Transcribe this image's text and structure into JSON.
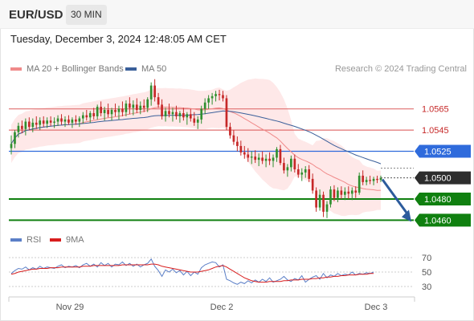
{
  "header": {
    "symbol": "EUR/USD",
    "timeframe": "30 MIN",
    "timestamp": "Tuesday, December 3, 2024 12:48:05 AM CET"
  },
  "legend_top": {
    "items": [
      {
        "label": "MA 20 + Bollinger Bands",
        "color": "#f08a8a"
      },
      {
        "label": "MA 50",
        "color": "#3a5f9a"
      }
    ],
    "credit": "Research © 2024 Trading Central"
  },
  "legend_bottom": {
    "items": [
      {
        "label": "RSI",
        "color": "#5b7fc7"
      },
      {
        "label": "9MA",
        "color": "#d81d1d"
      }
    ]
  },
  "colors": {
    "up": "#2f8f2f",
    "down": "#c62828",
    "resistance": "#e07070",
    "pivot": "#2f6bdc",
    "support": "#108010",
    "last": "#2d2d2d",
    "arrow": "#2c5b9c",
    "bands": "#fde0e0"
  },
  "chart_data": [
    {
      "type": "line",
      "title": "EUR/USD 30 MIN",
      "x_ticks": [
        "Nov 29",
        "Dec 2",
        "Dec 3"
      ],
      "y_range": [
        1.0452,
        1.0592
      ],
      "current_price": "1.0500",
      "levels": [
        {
          "value": 1.0565,
          "label": "1.0565",
          "kind": "resistance"
        },
        {
          "value": 1.0545,
          "label": "1.0545",
          "kind": "resistance"
        },
        {
          "value": 1.0525,
          "label": "1.0525",
          "kind": "pivot"
        },
        {
          "value": 1.048,
          "label": "1.0480",
          "kind": "support"
        },
        {
          "value": 1.046,
          "label": "1.0460",
          "kind": "support"
        }
      ],
      "forecast": {
        "direction": "down",
        "from": 1.05,
        "to": 1.046
      },
      "candles": [
        [
          1.0528,
          1.054,
          1.0522,
          1.0532
        ],
        [
          1.0532,
          1.0545,
          1.0528,
          1.0543
        ],
        [
          1.0543,
          1.0552,
          1.0538,
          1.0549
        ],
        [
          1.0549,
          1.0554,
          1.0542,
          1.0546
        ],
        [
          1.0546,
          1.0556,
          1.054,
          1.0553
        ],
        [
          1.0553,
          1.0557,
          1.0545,
          1.0548
        ],
        [
          1.0548,
          1.0556,
          1.0543,
          1.0552
        ],
        [
          1.0552,
          1.0558,
          1.0546,
          1.055
        ],
        [
          1.055,
          1.0557,
          1.0545,
          1.0554
        ],
        [
          1.0554,
          1.0558,
          1.0548,
          1.0551
        ],
        [
          1.0551,
          1.0557,
          1.0547,
          1.0554
        ],
        [
          1.0554,
          1.0558,
          1.0549,
          1.0552
        ],
        [
          1.0552,
          1.0557,
          1.0547,
          1.0553
        ],
        [
          1.0553,
          1.0559,
          1.0549,
          1.0556
        ],
        [
          1.0556,
          1.056,
          1.055,
          1.0553
        ],
        [
          1.0553,
          1.0558,
          1.0548,
          1.0555
        ],
        [
          1.0555,
          1.0559,
          1.055,
          1.0552
        ],
        [
          1.0552,
          1.0557,
          1.0547,
          1.0555
        ],
        [
          1.0555,
          1.0559,
          1.055,
          1.0553
        ],
        [
          1.0553,
          1.0558,
          1.0548,
          1.0556
        ],
        [
          1.0556,
          1.0562,
          1.0551,
          1.0559
        ],
        [
          1.0559,
          1.0564,
          1.0554,
          1.0557
        ],
        [
          1.0557,
          1.0563,
          1.0552,
          1.0561
        ],
        [
          1.0561,
          1.0566,
          1.0555,
          1.0558
        ],
        [
          1.0558,
          1.0569,
          1.0555,
          1.0567
        ],
        [
          1.0567,
          1.0572,
          1.0558,
          1.0561
        ],
        [
          1.0561,
          1.0567,
          1.0554,
          1.0564
        ],
        [
          1.0564,
          1.057,
          1.0557,
          1.056
        ],
        [
          1.056,
          1.0566,
          1.0554,
          1.0564
        ],
        [
          1.0564,
          1.057,
          1.0558,
          1.0562
        ],
        [
          1.0562,
          1.0568,
          1.0555,
          1.0565
        ],
        [
          1.0565,
          1.0572,
          1.0558,
          1.0562
        ],
        [
          1.0562,
          1.0573,
          1.0558,
          1.057
        ],
        [
          1.057,
          1.0576,
          1.056,
          1.0566
        ],
        [
          1.0566,
          1.0573,
          1.0559,
          1.0569
        ],
        [
          1.0569,
          1.0575,
          1.0561,
          1.0564
        ],
        [
          1.0564,
          1.0572,
          1.056,
          1.0568
        ],
        [
          1.0568,
          1.0574,
          1.0562,
          1.0566
        ],
        [
          1.0566,
          1.0576,
          1.0562,
          1.0574
        ],
        [
          1.0574,
          1.059,
          1.0568,
          1.0587
        ],
        [
          1.0587,
          1.0593,
          1.0572,
          1.0576
        ],
        [
          1.0576,
          1.058,
          1.0566,
          1.0569
        ],
        [
          1.0569,
          1.0574,
          1.0555,
          1.0558
        ],
        [
          1.0558,
          1.0566,
          1.0553,
          1.0563
        ],
        [
          1.0563,
          1.057,
          1.0557,
          1.056
        ],
        [
          1.056,
          1.0566,
          1.0553,
          1.0562
        ],
        [
          1.0562,
          1.0568,
          1.0555,
          1.0558
        ],
        [
          1.0558,
          1.0563,
          1.0552,
          1.0561
        ],
        [
          1.0561,
          1.0566,
          1.0554,
          1.0557
        ],
        [
          1.0557,
          1.0562,
          1.055,
          1.056
        ],
        [
          1.056,
          1.0565,
          1.0553,
          1.0556
        ],
        [
          1.0556,
          1.0562,
          1.0549,
          1.0552
        ],
        [
          1.0552,
          1.0558,
          1.0546,
          1.0555
        ],
        [
          1.0555,
          1.0568,
          1.0551,
          1.0565
        ],
        [
          1.0565,
          1.0575,
          1.056,
          1.0571
        ],
        [
          1.0571,
          1.0578,
          1.0565,
          1.0575
        ],
        [
          1.0575,
          1.058,
          1.0569,
          1.0577
        ],
        [
          1.0577,
          1.0582,
          1.0572,
          1.0579
        ],
        [
          1.0579,
          1.0583,
          1.0573,
          1.0578
        ],
        [
          1.0578,
          1.0582,
          1.0572,
          1.0575
        ],
        [
          1.0575,
          1.0578,
          1.0545,
          1.0548
        ],
        [
          1.0548,
          1.0552,
          1.0537,
          1.054
        ],
        [
          1.054,
          1.0545,
          1.0531,
          1.0534
        ],
        [
          1.0534,
          1.0539,
          1.0525,
          1.053
        ],
        [
          1.053,
          1.0535,
          1.0521,
          1.0524
        ],
        [
          1.0524,
          1.053,
          1.0518,
          1.0522
        ],
        [
          1.0522,
          1.0528,
          1.0515,
          1.0519
        ],
        [
          1.0519,
          1.0525,
          1.0513,
          1.052
        ],
        [
          1.052,
          1.0526,
          1.0514,
          1.0517
        ],
        [
          1.0517,
          1.0523,
          1.0511,
          1.0519
        ],
        [
          1.0519,
          1.0525,
          1.0513,
          1.0516
        ],
        [
          1.0516,
          1.0522,
          1.051,
          1.0518
        ],
        [
          1.0518,
          1.0524,
          1.0512,
          1.0516
        ],
        [
          1.0516,
          1.0522,
          1.051,
          1.0519
        ],
        [
          1.0519,
          1.0529,
          1.0515,
          1.0527
        ],
        [
          1.0527,
          1.0531,
          1.0512,
          1.0514
        ],
        [
          1.0514,
          1.0519,
          1.0504,
          1.0507
        ],
        [
          1.0507,
          1.0513,
          1.0501,
          1.051
        ],
        [
          1.051,
          1.0521,
          1.0506,
          1.0518
        ],
        [
          1.0518,
          1.0522,
          1.0505,
          1.0508
        ],
        [
          1.0508,
          1.0513,
          1.05,
          1.0503
        ],
        [
          1.0503,
          1.0509,
          1.0497,
          1.0505
        ],
        [
          1.0505,
          1.0511,
          1.05,
          1.0508
        ],
        [
          1.0508,
          1.0512,
          1.0496,
          1.0499
        ],
        [
          1.0499,
          1.0504,
          1.0485,
          1.0488
        ],
        [
          1.0488,
          1.0491,
          1.0468,
          1.0472
        ],
        [
          1.0472,
          1.0489,
          1.0469,
          1.0484
        ],
        [
          1.0484,
          1.0487,
          1.0463,
          1.0468
        ],
        [
          1.0468,
          1.0478,
          1.0462,
          1.0475
        ],
        [
          1.0475,
          1.0492,
          1.0472,
          1.0489
        ],
        [
          1.0489,
          1.0493,
          1.0478,
          1.0481
        ],
        [
          1.0481,
          1.0491,
          1.0477,
          1.0488
        ],
        [
          1.0488,
          1.0492,
          1.048,
          1.0484
        ],
        [
          1.0484,
          1.0491,
          1.0479,
          1.0487
        ],
        [
          1.0487,
          1.0492,
          1.048,
          1.0485
        ],
        [
          1.0485,
          1.0491,
          1.0479,
          1.0488
        ],
        [
          1.0488,
          1.0492,
          1.0481,
          1.0486
        ],
        [
          1.0486,
          1.0505,
          1.0484,
          1.0502
        ],
        [
          1.0502,
          1.0507,
          1.0493,
          1.0496
        ],
        [
          1.0496,
          1.0501,
          1.0493,
          1.0498
        ],
        [
          1.0498,
          1.0502,
          1.0494,
          1.0497
        ],
        [
          1.0497,
          1.0501,
          1.0493,
          1.0499
        ],
        [
          1.0499,
          1.0502,
          1.0495,
          1.0498
        ],
        [
          1.0498,
          1.0502,
          1.0496,
          1.05
        ]
      ]
    },
    {
      "type": "line",
      "title": "RSI",
      "y_ticks": [
        70,
        50,
        30
      ],
      "series": [
        {
          "name": "RSI",
          "values": [
            48,
            52,
            55,
            54,
            57,
            53,
            56,
            54,
            58,
            55,
            57,
            56,
            55,
            58,
            60,
            56,
            58,
            57,
            59,
            56,
            60,
            62,
            58,
            61,
            57,
            63,
            59,
            62,
            57,
            61,
            60,
            64,
            59,
            62,
            58,
            61,
            57,
            60,
            62,
            68,
            58,
            52,
            44,
            53,
            50,
            54,
            49,
            52,
            46,
            51,
            45,
            50,
            47,
            56,
            60,
            62,
            64,
            63,
            57,
            60,
            40,
            38,
            35,
            33,
            36,
            34,
            38,
            35,
            39,
            36,
            40,
            37,
            42,
            36,
            38,
            40,
            44,
            39,
            37,
            41,
            39,
            45,
            36,
            40,
            43,
            45,
            40,
            48,
            42,
            46,
            44,
            48,
            45,
            47,
            46,
            50,
            46,
            48,
            47,
            49,
            48,
            50
          ]
        },
        {
          "name": "9MA",
          "values": [
            47,
            48,
            50,
            51,
            52,
            53,
            54,
            54,
            55,
            55,
            55,
            56,
            56,
            56,
            57,
            57,
            57,
            57,
            57,
            57,
            58,
            58,
            58,
            59,
            59,
            59,
            59,
            59,
            59,
            59,
            59,
            60,
            60,
            60,
            60,
            60,
            60,
            60,
            60,
            61,
            61,
            60,
            58,
            57,
            56,
            55,
            54,
            53,
            52,
            51,
            50,
            50,
            50,
            51,
            52,
            53,
            55,
            57,
            58,
            59,
            57,
            54,
            51,
            48,
            45,
            42,
            40,
            38,
            37,
            36,
            36,
            36,
            37,
            37,
            37,
            37,
            38,
            38,
            39,
            39,
            39,
            40,
            40,
            40,
            41,
            41,
            42,
            42,
            43,
            43,
            44,
            44,
            45,
            45,
            46,
            46,
            46,
            47,
            47,
            47,
            48,
            48
          ]
        }
      ]
    }
  ]
}
